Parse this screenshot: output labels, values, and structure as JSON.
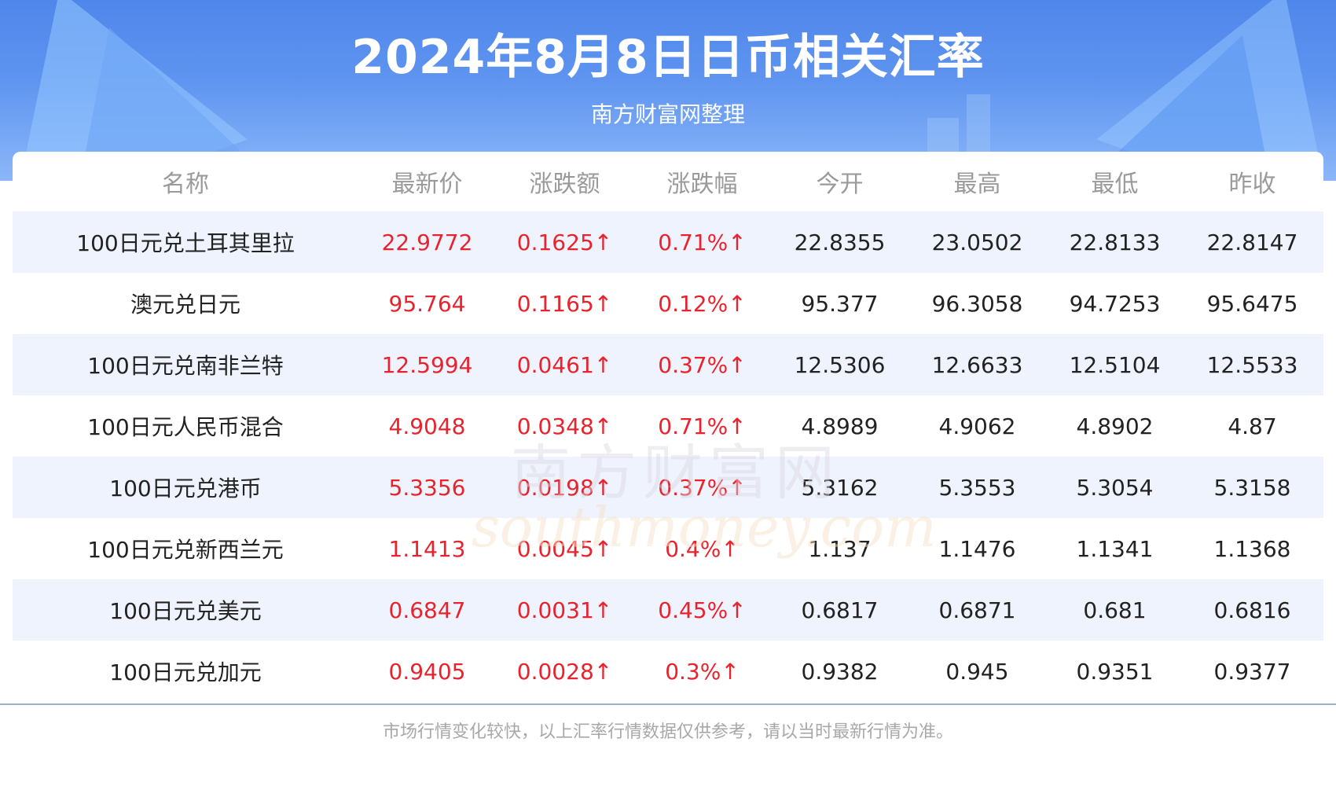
{
  "header": {
    "title": "2024年8月8日日币相关汇率",
    "subtitle": "南方财富网整理"
  },
  "table": {
    "columns": [
      "名称",
      "最新价",
      "涨跌额",
      "涨跌幅",
      "今开",
      "最高",
      "最低",
      "昨收"
    ],
    "rows": [
      {
        "name": "100日元兑土耳其里拉",
        "latest": "22.9772",
        "change": "0.1625↑",
        "pct": "0.71%↑",
        "open": "22.8355",
        "high": "23.0502",
        "low": "22.8133",
        "prev": "22.8147"
      },
      {
        "name": "澳元兑日元",
        "latest": "95.764",
        "change": "0.1165↑",
        "pct": "0.12%↑",
        "open": "95.377",
        "high": "96.3058",
        "low": "94.7253",
        "prev": "95.6475"
      },
      {
        "name": "100日元兑南非兰特",
        "latest": "12.5994",
        "change": "0.0461↑",
        "pct": "0.37%↑",
        "open": "12.5306",
        "high": "12.6633",
        "low": "12.5104",
        "prev": "12.5533"
      },
      {
        "name": "100日元人民币混合",
        "latest": "4.9048",
        "change": "0.0348↑",
        "pct": "0.71%↑",
        "open": "4.8989",
        "high": "4.9062",
        "low": "4.8902",
        "prev": "4.87"
      },
      {
        "name": "100日元兑港币",
        "latest": "5.3356",
        "change": "0.0198↑",
        "pct": "0.37%↑",
        "open": "5.3162",
        "high": "5.3553",
        "low": "5.3054",
        "prev": "5.3158"
      },
      {
        "name": "100日元兑新西兰元",
        "latest": "1.1413",
        "change": "0.0045↑",
        "pct": "0.4%↑",
        "open": "1.137",
        "high": "1.1476",
        "low": "1.1341",
        "prev": "1.1368"
      },
      {
        "name": "100日元兑美元",
        "latest": "0.6847",
        "change": "0.0031↑",
        "pct": "0.45%↑",
        "open": "0.6817",
        "high": "0.6871",
        "low": "0.681",
        "prev": "0.6816"
      },
      {
        "name": "100日元兑加元",
        "latest": "0.9405",
        "change": "0.0028↑",
        "pct": "0.3%↑",
        "open": "0.9382",
        "high": "0.945",
        "low": "0.9351",
        "prev": "0.9377"
      }
    ]
  },
  "watermark": {
    "cn": "南方财富网",
    "en": "southmoney.com"
  },
  "footer": {
    "note": "市场行情变化较快，以上汇率行情数据仅供参考，请以当时最新行情为准。"
  },
  "colors": {
    "header_blue": "#4f86ea",
    "row_alt": "#eef3fd",
    "rise_red": "#e8232e",
    "header_text_gray": "#9a9a9a"
  }
}
